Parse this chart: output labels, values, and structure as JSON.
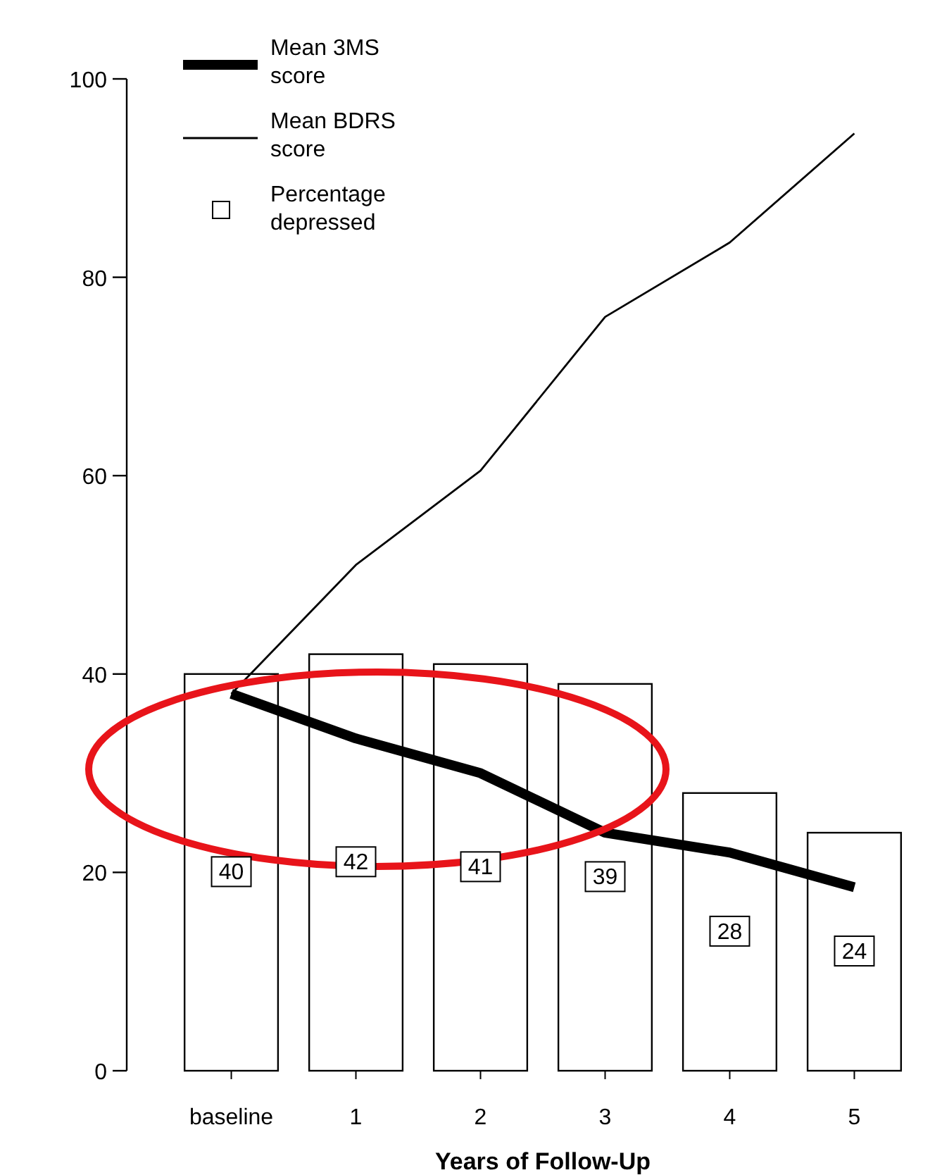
{
  "chart_data": {
    "type": "bar",
    "xlabel": "Years of Follow-Up",
    "categories": [
      "baseline",
      "1",
      "2",
      "3",
      "4",
      "5"
    ],
    "series": [
      {
        "name": "Percentage depressed",
        "color": "#ffffff",
        "values": [
          40,
          42,
          41,
          39,
          28,
          24
        ],
        "value_labels": [
          "40",
          "42",
          "41",
          "39",
          "28",
          "24"
        ]
      },
      {
        "name": "Mean 3MS score",
        "type": "line",
        "color": "#000000",
        "values": [
          38,
          33.5,
          30,
          24,
          22,
          18.5
        ]
      },
      {
        "name": "Mean BDRS score",
        "type": "line",
        "color": "#000000",
        "values": [
          38,
          51,
          60.5,
          76,
          83.5,
          94.5
        ]
      }
    ],
    "ylim": [
      0,
      100
    ],
    "yticks": [
      0,
      20,
      40,
      60,
      80,
      100
    ],
    "legend": "top left"
  }
}
